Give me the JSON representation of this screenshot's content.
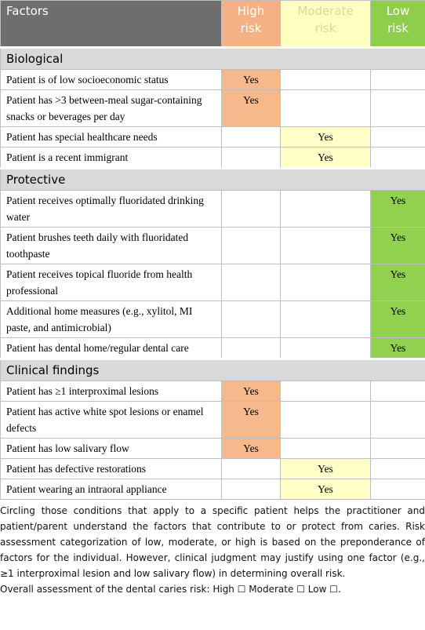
{
  "header": [
    "Factors",
    "High risk",
    "Moderate risk",
    "Low risk"
  ],
  "sections": [
    {
      "title": "Biological",
      "rows": [
        {
          "factor": "Patient is of low socioeconomic status",
          "high": "Yes"
        },
        {
          "factor": "Patient has >3 between-meal sugar-containing snacks or beverages per day",
          "high": "Yes"
        },
        {
          "factor": "Patient has special healthcare needs",
          "moderate": "Yes"
        },
        {
          "factor": "Patient is a recent immigrant",
          "moderate": "Yes"
        }
      ]
    },
    {
      "title": "Protective",
      "rows": [
        {
          "factor": "Patient receives optimally fluoridated drinking water",
          "low": "Yes"
        },
        {
          "factor": "Patient brushes teeth daily with fluoridated toothpaste",
          "low": "Yes"
        },
        {
          "factor": "Patient receives topical fluoride from health professional",
          "low": "Yes"
        },
        {
          "factor": "Additional home measures (e.g., xylitol, MI paste, and antimicrobial)",
          "low": "Yes"
        },
        {
          "factor": "Patient has dental home/regular dental care",
          "low": "Yes"
        }
      ]
    },
    {
      "title": "Clinical findings",
      "rows": [
        {
          "factor": "Patient has ≥1 interproximal lesions",
          "high": "Yes"
        },
        {
          "factor": "Patient has active white spot lesions or enamel defects",
          "high": "Yes"
        },
        {
          "factor": "Patient has low salivary flow",
          "high": "Yes"
        },
        {
          "factor": "Patient has defective restorations",
          "moderate": "Yes"
        },
        {
          "factor": "Patient wearing an intraoral appliance",
          "moderate": "Yes"
        }
      ]
    }
  ],
  "notes": [
    "Circling those conditions that apply to a specific patient helps the practitioner and patient/parent understand the factors that contribute to or protect from caries. Risk assessment categorization of low, moderate, or high is based on the preponderance of factors for the individual. However, clinical judgment may justify using one factor (e.g., ≥1 interproximal lesion and low salivary flow) in determining overall risk.",
    "Overall assessment of the dental caries risk: High ☐ Moderate ☐ Low ☐."
  ]
}
